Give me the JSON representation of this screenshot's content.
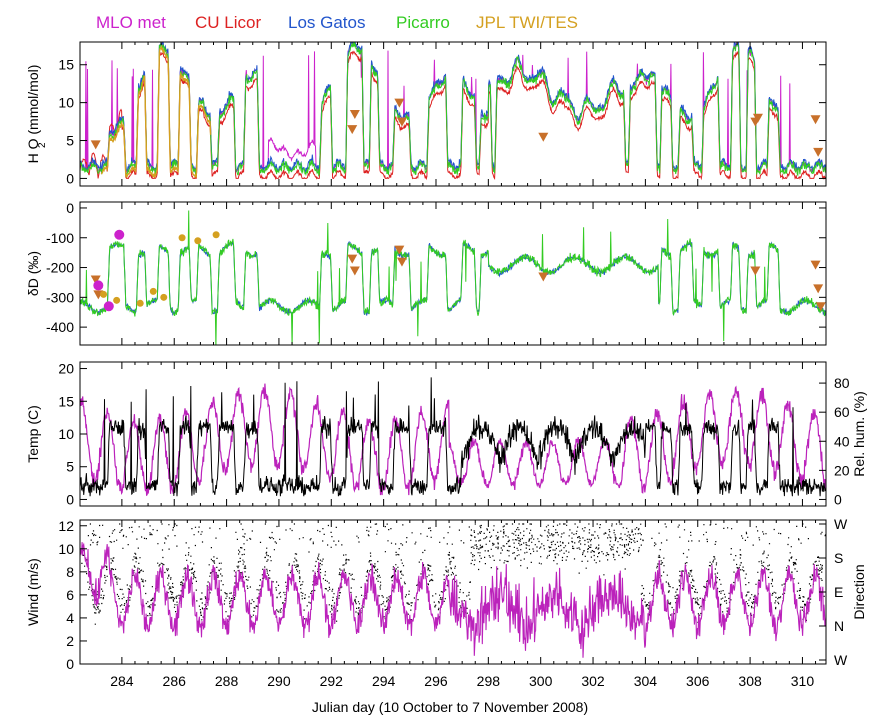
{
  "legend": [
    {
      "label": "MLO met",
      "color": "#cc22cc"
    },
    {
      "label": "CU Licor",
      "color": "#dd2222"
    },
    {
      "label": "Los Gatos",
      "color": "#2255cc"
    },
    {
      "label": "Picarro",
      "color": "#33cc22"
    },
    {
      "label": "JPL TWI/TES",
      "color": "#d4a020"
    }
  ],
  "xaxis": {
    "label": "Julian day (10 October to 7 November 2008)",
    "range": [
      282.4,
      310.9
    ],
    "ticks": [
      "284",
      "286",
      "288",
      "290",
      "292",
      "294",
      "296",
      "298",
      "300",
      "302",
      "304",
      "306",
      "308",
      "310"
    ],
    "tick_values": [
      284,
      286,
      288,
      290,
      292,
      294,
      296,
      298,
      300,
      302,
      304,
      306,
      308,
      310
    ]
  },
  "chart_data": [
    {
      "type": "line",
      "ylabel": "H O (mmol/mol)",
      "ylabel_sub": "2",
      "ylim": [
        -1,
        18
      ],
      "yticks": [
        "0",
        "5",
        "10",
        "15"
      ],
      "ytick_values": [
        0,
        5,
        10,
        15
      ],
      "series": [
        {
          "name": "MLO met",
          "color": "#cc22cc"
        },
        {
          "name": "CU Licor",
          "color": "#dd2222"
        },
        {
          "name": "Los Gatos",
          "color": "#2255cc"
        },
        {
          "name": "Picarro",
          "color": "#33cc22"
        },
        {
          "name": "JPL TWI/TES",
          "color": "#d4a020"
        }
      ],
      "markers": {
        "color": "#c8702a",
        "x": [
          283.0,
          292.8,
          292.9,
          294.6,
          294.7,
          300.1,
          308.2,
          308.3,
          310.5,
          310.6
        ],
        "y": [
          4.5,
          6.5,
          8.5,
          10,
          7.5,
          5.5,
          7.5,
          8,
          7.8,
          3.5
        ]
      }
    },
    {
      "type": "line",
      "ylabel": "δD (‰)",
      "ylim": [
        -460,
        20
      ],
      "yticks": [
        "-400",
        "-300",
        "-200",
        "-100",
        "0"
      ],
      "ytick_values": [
        -400,
        -300,
        -200,
        -100,
        0
      ],
      "series": [
        {
          "name": "Los Gatos",
          "color": "#2255cc"
        },
        {
          "name": "Picarro",
          "color": "#33cc22"
        }
      ],
      "markers": {
        "color": "#c8702a",
        "x": [
          283.0,
          283.1,
          292.8,
          292.9,
          294.6,
          294.7,
          300.1,
          308.2,
          310.5,
          310.6,
          310.7
        ],
        "y": [
          -240,
          -290,
          -170,
          -210,
          -140,
          -180,
          -230,
          -210,
          -190,
          -270,
          -330
        ]
      },
      "dots_magenta": {
        "color": "#cc22cc",
        "x": [
          283.1,
          283.5,
          283.9
        ],
        "y": [
          -260,
          -330,
          -90
        ]
      },
      "dots_gold": {
        "color": "#d4a020",
        "x": [
          283.3,
          283.8,
          284.7,
          285.2,
          285.6,
          286.3,
          286.9,
          287.6
        ],
        "y": [
          -290,
          -310,
          -320,
          -280,
          -300,
          -100,
          -110,
          -90
        ]
      }
    },
    {
      "type": "line",
      "ylabel": "Temp (C)",
      "ylabel_right": "Rel. hum. (%)",
      "ylim": [
        -1,
        21
      ],
      "yticks": [
        "0",
        "5",
        "10",
        "15",
        "20"
      ],
      "ytick_values": [
        0,
        5,
        10,
        15,
        20
      ],
      "right_ylim": [
        -4.5,
        94.5
      ],
      "right_yticks": [
        "0",
        "20",
        "40",
        "60",
        "80"
      ],
      "right_ytick_values": [
        0,
        20,
        40,
        60,
        80
      ],
      "series": [
        {
          "name": "Temp",
          "color": "#000000"
        },
        {
          "name": "Rel. hum.",
          "color": "#bb22bb"
        }
      ]
    },
    {
      "type": "line",
      "ylabel": "Wind (m/s)",
      "ylabel_right": "Direction",
      "ylim": [
        0,
        12.5
      ],
      "yticks": [
        "0",
        "2",
        "4",
        "6",
        "8",
        "10",
        "12"
      ],
      "ytick_values": [
        0,
        2,
        4,
        6,
        8,
        10,
        12
      ],
      "right_ylim": [
        0,
        375
      ],
      "right_yticks": [
        "W",
        "N",
        "E",
        "S",
        "W"
      ],
      "right_ytick_values": [
        -90,
        0,
        90,
        180,
        270
      ],
      "series": [
        {
          "name": "Wind speed",
          "color": "#bb22bb"
        },
        {
          "name": "Direction",
          "color": "#000000"
        }
      ]
    }
  ]
}
